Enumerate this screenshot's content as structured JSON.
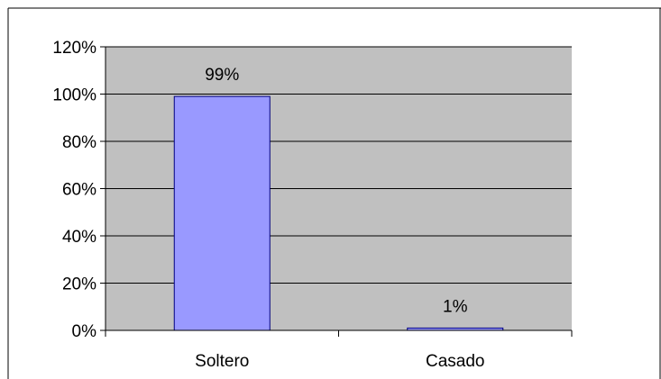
{
  "chart_data": {
    "type": "bar",
    "categories": [
      "Soltero",
      "Casado"
    ],
    "values": [
      99,
      1
    ],
    "data_labels": [
      "99%",
      "1%"
    ],
    "y_tick_labels": [
      "0%",
      "20%",
      "40%",
      "60%",
      "80%",
      "100%",
      "120%"
    ],
    "y_ticks": [
      0,
      20,
      40,
      60,
      80,
      100,
      120
    ],
    "ylim": [
      0,
      120
    ],
    "grid": true,
    "legend": "none",
    "colors": {
      "bar_fill": "#9999ff",
      "bar_stroke": "#000080",
      "plot_background": "#c0c0c0",
      "gridline": "#000000",
      "frame": "#000000"
    }
  }
}
